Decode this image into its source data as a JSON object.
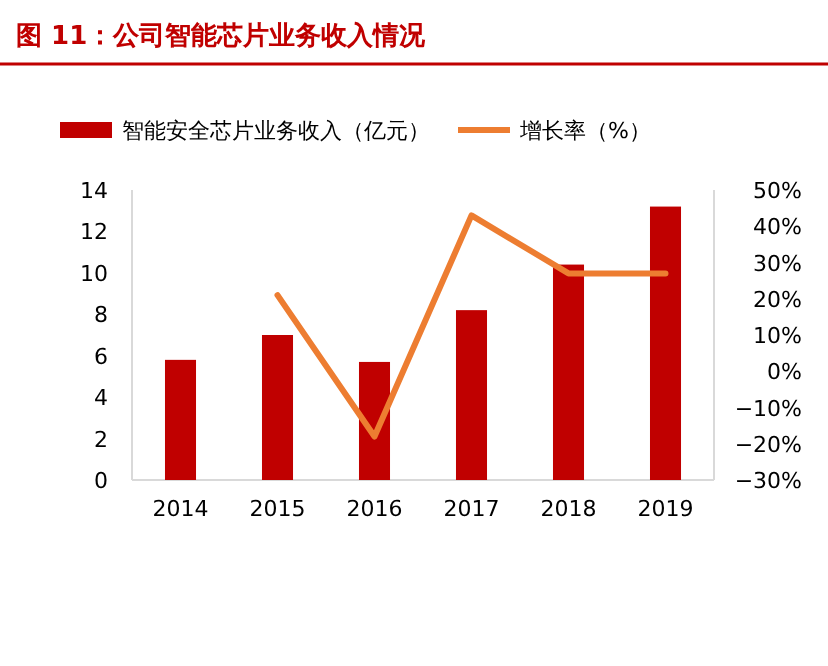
{
  "chart_data": {
    "type": "bar",
    "title": "图 11：公司智能芯片业务收入情况",
    "categories": [
      "2014",
      "2015",
      "2016",
      "2017",
      "2018",
      "2019"
    ],
    "series": [
      {
        "name": "智能安全芯片业务收入（亿元）",
        "color": "#c00000",
        "values": [
          5.8,
          7.0,
          5.7,
          8.2,
          10.4,
          13.2
        ]
      },
      {
        "name": "增长率（%）",
        "type": "line",
        "axis": "y2",
        "color": "#ed7d31",
        "values": [
          null,
          21,
          -18,
          43,
          27,
          27
        ]
      }
    ],
    "ylim": [
      0,
      14
    ],
    "yticks": [
      0,
      2,
      4,
      6,
      8,
      10,
      12,
      14
    ],
    "y2lim": [
      -30,
      50
    ],
    "y2ticks": [
      {
        "value": -30,
        "label": "−30%"
      },
      {
        "value": -20,
        "label": "−20%"
      },
      {
        "value": -10,
        "label": "−10%"
      },
      {
        "value": 0,
        "label": "0%"
      },
      {
        "value": 10,
        "label": "10%"
      },
      {
        "value": 20,
        "label": "20%"
      },
      {
        "value": 30,
        "label": "30%"
      },
      {
        "value": 40,
        "label": "40%"
      },
      {
        "value": 50,
        "label": "50%"
      }
    ],
    "grid": false,
    "legend": "top",
    "marker": "none",
    "line_style": "solid"
  }
}
